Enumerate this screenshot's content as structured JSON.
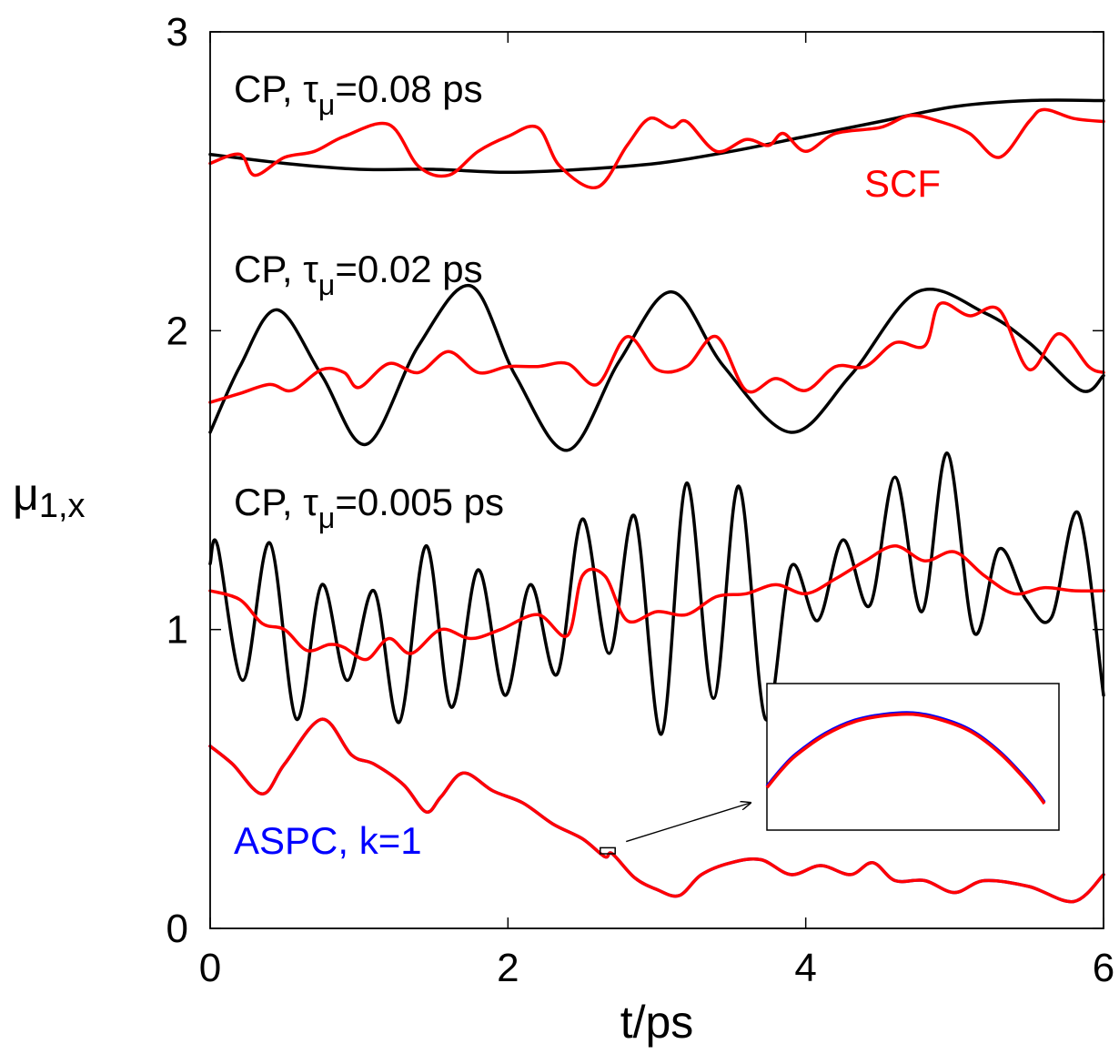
{
  "chart_data": {
    "type": "line",
    "xlabel": "t/ps",
    "ylabel_main": "μ",
    "ylabel_sub": "1,x",
    "xlim": [
      0,
      6
    ],
    "ylim": [
      0,
      3
    ],
    "xticks": [
      "0",
      "2",
      "4",
      "6"
    ],
    "yticks": [
      "0",
      "1",
      "2",
      "3"
    ],
    "colors": {
      "cp": "#000000",
      "scf": "#ff0000",
      "aspc": "#0000ff"
    },
    "annotations": {
      "cp_prefix": "CP, ",
      "tau": "τ",
      "mu": "μ",
      "tau1_value": "=0.08 ps",
      "tau2_value": "=0.02 ps",
      "tau3_value": "=0.005 ps",
      "scf": "SCF",
      "aspc": "ASPC, k=1"
    },
    "series": [
      {
        "group": "cp-0.08",
        "x": [
          0,
          0.5,
          1.0,
          1.5,
          2.0,
          2.5,
          3.0,
          3.5,
          4.0,
          4.5,
          5.0,
          5.5,
          6.0
        ],
        "values": [
          2.59,
          2.56,
          2.54,
          2.54,
          2.53,
          2.54,
          2.56,
          2.6,
          2.65,
          2.7,
          2.75,
          2.77,
          2.77
        ]
      },
      {
        "group": "scf-0.08",
        "x": [
          0,
          0.2,
          0.3,
          0.5,
          0.7,
          0.9,
          1.2,
          1.4,
          1.6,
          1.8,
          2.0,
          2.2,
          2.35,
          2.6,
          2.8,
          2.95,
          3.1,
          3.2,
          3.4,
          3.6,
          3.75,
          3.85,
          4.0,
          4.2,
          4.5,
          4.7,
          4.9,
          5.1,
          5.3,
          5.5,
          5.6,
          5.8,
          6.0
        ],
        "values": [
          2.56,
          2.59,
          2.52,
          2.58,
          2.6,
          2.65,
          2.69,
          2.55,
          2.52,
          2.6,
          2.65,
          2.68,
          2.55,
          2.48,
          2.62,
          2.71,
          2.68,
          2.7,
          2.6,
          2.64,
          2.62,
          2.66,
          2.6,
          2.66,
          2.68,
          2.72,
          2.7,
          2.66,
          2.58,
          2.7,
          2.74,
          2.71,
          2.7
        ]
      },
      {
        "group": "cp-0.02",
        "x": [
          0,
          0.2,
          0.45,
          0.75,
          1.05,
          1.4,
          1.75,
          2.05,
          2.4,
          2.75,
          3.1,
          3.45,
          3.9,
          4.3,
          4.75,
          5.2,
          5.5,
          5.85,
          6.0
        ],
        "values": [
          1.66,
          1.88,
          2.07,
          1.85,
          1.62,
          1.95,
          2.15,
          1.85,
          1.6,
          1.9,
          2.13,
          1.88,
          1.66,
          1.85,
          2.13,
          2.06,
          1.96,
          1.8,
          1.85
        ]
      },
      {
        "group": "scf-0.02",
        "x": [
          0,
          0.2,
          0.4,
          0.55,
          0.75,
          0.9,
          1.0,
          1.2,
          1.4,
          1.6,
          1.8,
          2.0,
          2.2,
          2.4,
          2.6,
          2.8,
          3.0,
          3.2,
          3.4,
          3.6,
          3.8,
          4.0,
          4.2,
          4.4,
          4.6,
          4.8,
          4.9,
          5.1,
          5.3,
          5.5,
          5.7,
          5.9,
          6.0
        ],
        "values": [
          1.76,
          1.79,
          1.82,
          1.8,
          1.87,
          1.86,
          1.81,
          1.89,
          1.86,
          1.93,
          1.86,
          1.88,
          1.88,
          1.89,
          1.82,
          1.98,
          1.87,
          1.88,
          1.98,
          1.8,
          1.84,
          1.8,
          1.88,
          1.88,
          1.96,
          1.95,
          2.09,
          2.05,
          2.07,
          1.87,
          1.99,
          1.88,
          1.86
        ]
      },
      {
        "group": "cp-0.005",
        "x": [
          0,
          0.05,
          0.22,
          0.4,
          0.58,
          0.75,
          0.92,
          1.1,
          1.27,
          1.45,
          1.62,
          1.8,
          1.98,
          2.15,
          2.33,
          2.5,
          2.68,
          2.85,
          3.03,
          3.2,
          3.38,
          3.55,
          3.73,
          3.9,
          4.08,
          4.25,
          4.43,
          4.6,
          4.78,
          4.95,
          5.13,
          5.3,
          5.48,
          5.65,
          5.83,
          6.0
        ],
        "values": [
          1.22,
          1.28,
          0.83,
          1.29,
          0.7,
          1.15,
          0.83,
          1.13,
          0.69,
          1.28,
          0.74,
          1.2,
          0.78,
          1.15,
          0.85,
          1.37,
          0.92,
          1.38,
          0.65,
          1.49,
          0.77,
          1.48,
          0.7,
          1.21,
          1.03,
          1.3,
          1.08,
          1.51,
          1.06,
          1.59,
          0.99,
          1.27,
          1.1,
          1.04,
          1.39,
          0.78
        ]
      },
      {
        "group": "scf-0.005",
        "x": [
          0,
          0.2,
          0.35,
          0.5,
          0.65,
          0.8,
          0.9,
          1.05,
          1.2,
          1.35,
          1.55,
          1.75,
          1.95,
          2.2,
          2.4,
          2.5,
          2.65,
          2.8,
          3.0,
          3.2,
          3.4,
          3.6,
          3.8,
          4.0,
          4.2,
          4.4,
          4.6,
          4.8,
          5.0,
          5.2,
          5.4,
          5.6,
          5.8,
          6.0
        ],
        "values": [
          1.13,
          1.1,
          1.02,
          1.0,
          0.93,
          0.95,
          0.94,
          0.9,
          0.97,
          0.92,
          1.0,
          0.97,
          1.0,
          1.05,
          0.98,
          1.18,
          1.18,
          1.03,
          1.06,
          1.05,
          1.11,
          1.12,
          1.15,
          1.12,
          1.17,
          1.23,
          1.28,
          1.23,
          1.26,
          1.18,
          1.12,
          1.14,
          1.13,
          1.13
        ]
      },
      {
        "group": "aspc",
        "x": [
          0,
          0.15,
          0.35,
          0.5,
          0.75,
          0.95,
          1.1,
          1.3,
          1.45,
          1.55,
          1.7,
          1.9,
          2.1,
          2.3,
          2.5,
          2.65,
          2.7,
          2.85,
          3.0,
          3.15,
          3.3,
          3.5,
          3.7,
          3.9,
          4.1,
          4.3,
          4.45,
          4.6,
          4.8,
          5.0,
          5.2,
          5.5,
          5.8,
          6.0
        ],
        "values": [
          0.61,
          0.55,
          0.45,
          0.55,
          0.7,
          0.58,
          0.55,
          0.48,
          0.39,
          0.44,
          0.52,
          0.46,
          0.42,
          0.35,
          0.3,
          0.24,
          0.25,
          0.17,
          0.13,
          0.11,
          0.18,
          0.22,
          0.23,
          0.18,
          0.21,
          0.18,
          0.22,
          0.16,
          0.16,
          0.12,
          0.16,
          0.14,
          0.09,
          0.18
        ]
      }
    ],
    "inset": {
      "source_x": [
        2.62,
        2.72
      ],
      "source_y": [
        0.25,
        0.27
      ],
      "x": [
        0,
        0.05,
        0.1,
        0.2,
        0.3,
        0.4,
        0.5,
        0.6,
        0.7,
        0.8,
        0.9,
        0.95
      ],
      "blue": [
        0.3,
        0.42,
        0.52,
        0.66,
        0.75,
        0.79,
        0.8,
        0.76,
        0.68,
        0.53,
        0.32,
        0.19
      ],
      "red": [
        0.29,
        0.41,
        0.51,
        0.65,
        0.74,
        0.78,
        0.79,
        0.75,
        0.67,
        0.52,
        0.31,
        0.18
      ]
    }
  }
}
